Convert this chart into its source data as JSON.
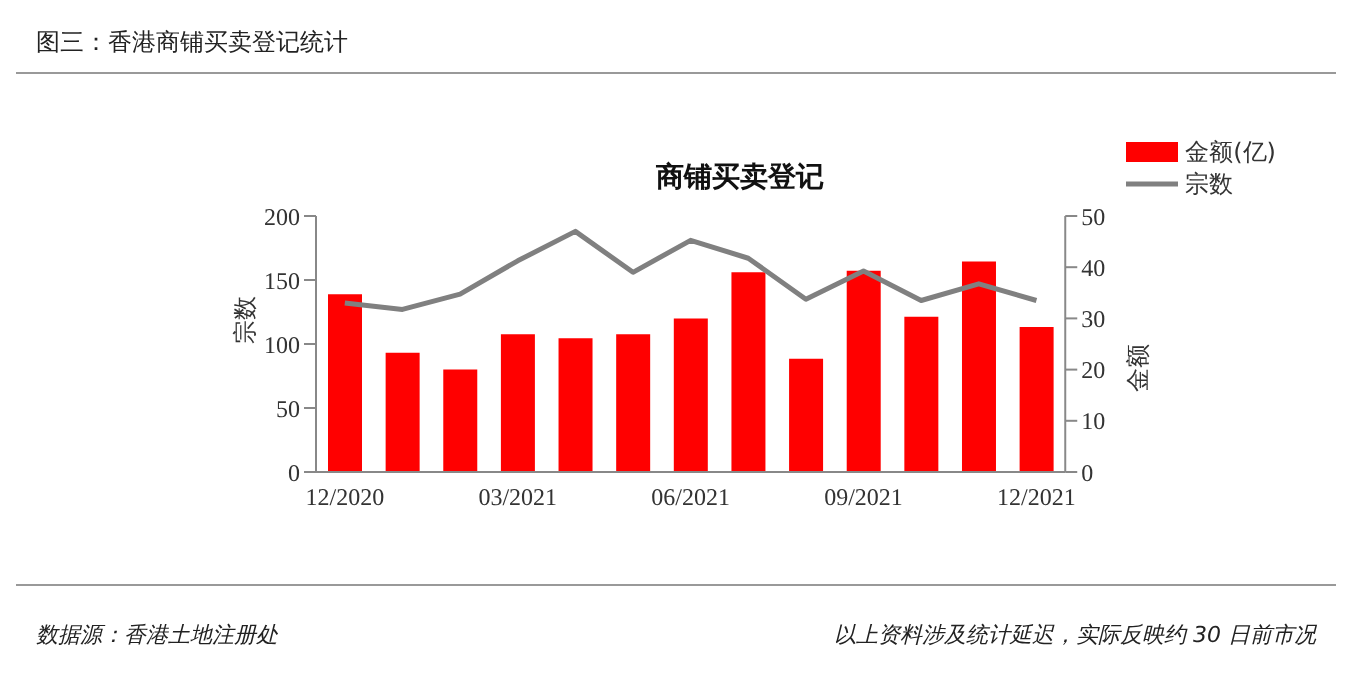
{
  "chart_data": {
    "type": "bar",
    "title": "图三：香港商铺买卖登记统计",
    "subtitle": "商铺买卖登记",
    "ylabel": "宗数",
    "y2label": "金额",
    "categories": [
      "12/2020",
      null,
      null,
      "03/2021",
      null,
      null,
      "06/2021",
      null,
      null,
      "09/2021",
      null,
      null,
      "12/2021"
    ],
    "series": [
      {
        "name": "金额(亿)",
        "axis": "y2",
        "color": "#ff0000",
        "values": [
          34.7,
          23.3,
          20,
          26.9,
          26.1,
          26.9,
          30,
          39,
          22.1,
          39.3,
          30.3,
          41.1,
          28.3
        ]
      },
      {
        "name": "宗数",
        "type": "line",
        "axis": "y",
        "color": "#808080",
        "values": [
          132,
          127,
          139,
          165,
          188,
          156,
          181,
          167,
          135,
          157,
          134,
          147,
          134
        ]
      }
    ],
    "ylim": [
      0,
      200
    ],
    "yticks": [
      0,
      50,
      100,
      150,
      200
    ],
    "y2lim": [
      0,
      50
    ],
    "y2ticks": [
      0,
      10,
      20,
      30,
      40,
      50
    ],
    "grid": false,
    "legend": "top right",
    "marker": "none",
    "line_style": "solid",
    "annotations": [
      "数据源：香港土地注册处",
      "以上资料涉及统计延迟，实际反映约 30 日前市况"
    ]
  }
}
